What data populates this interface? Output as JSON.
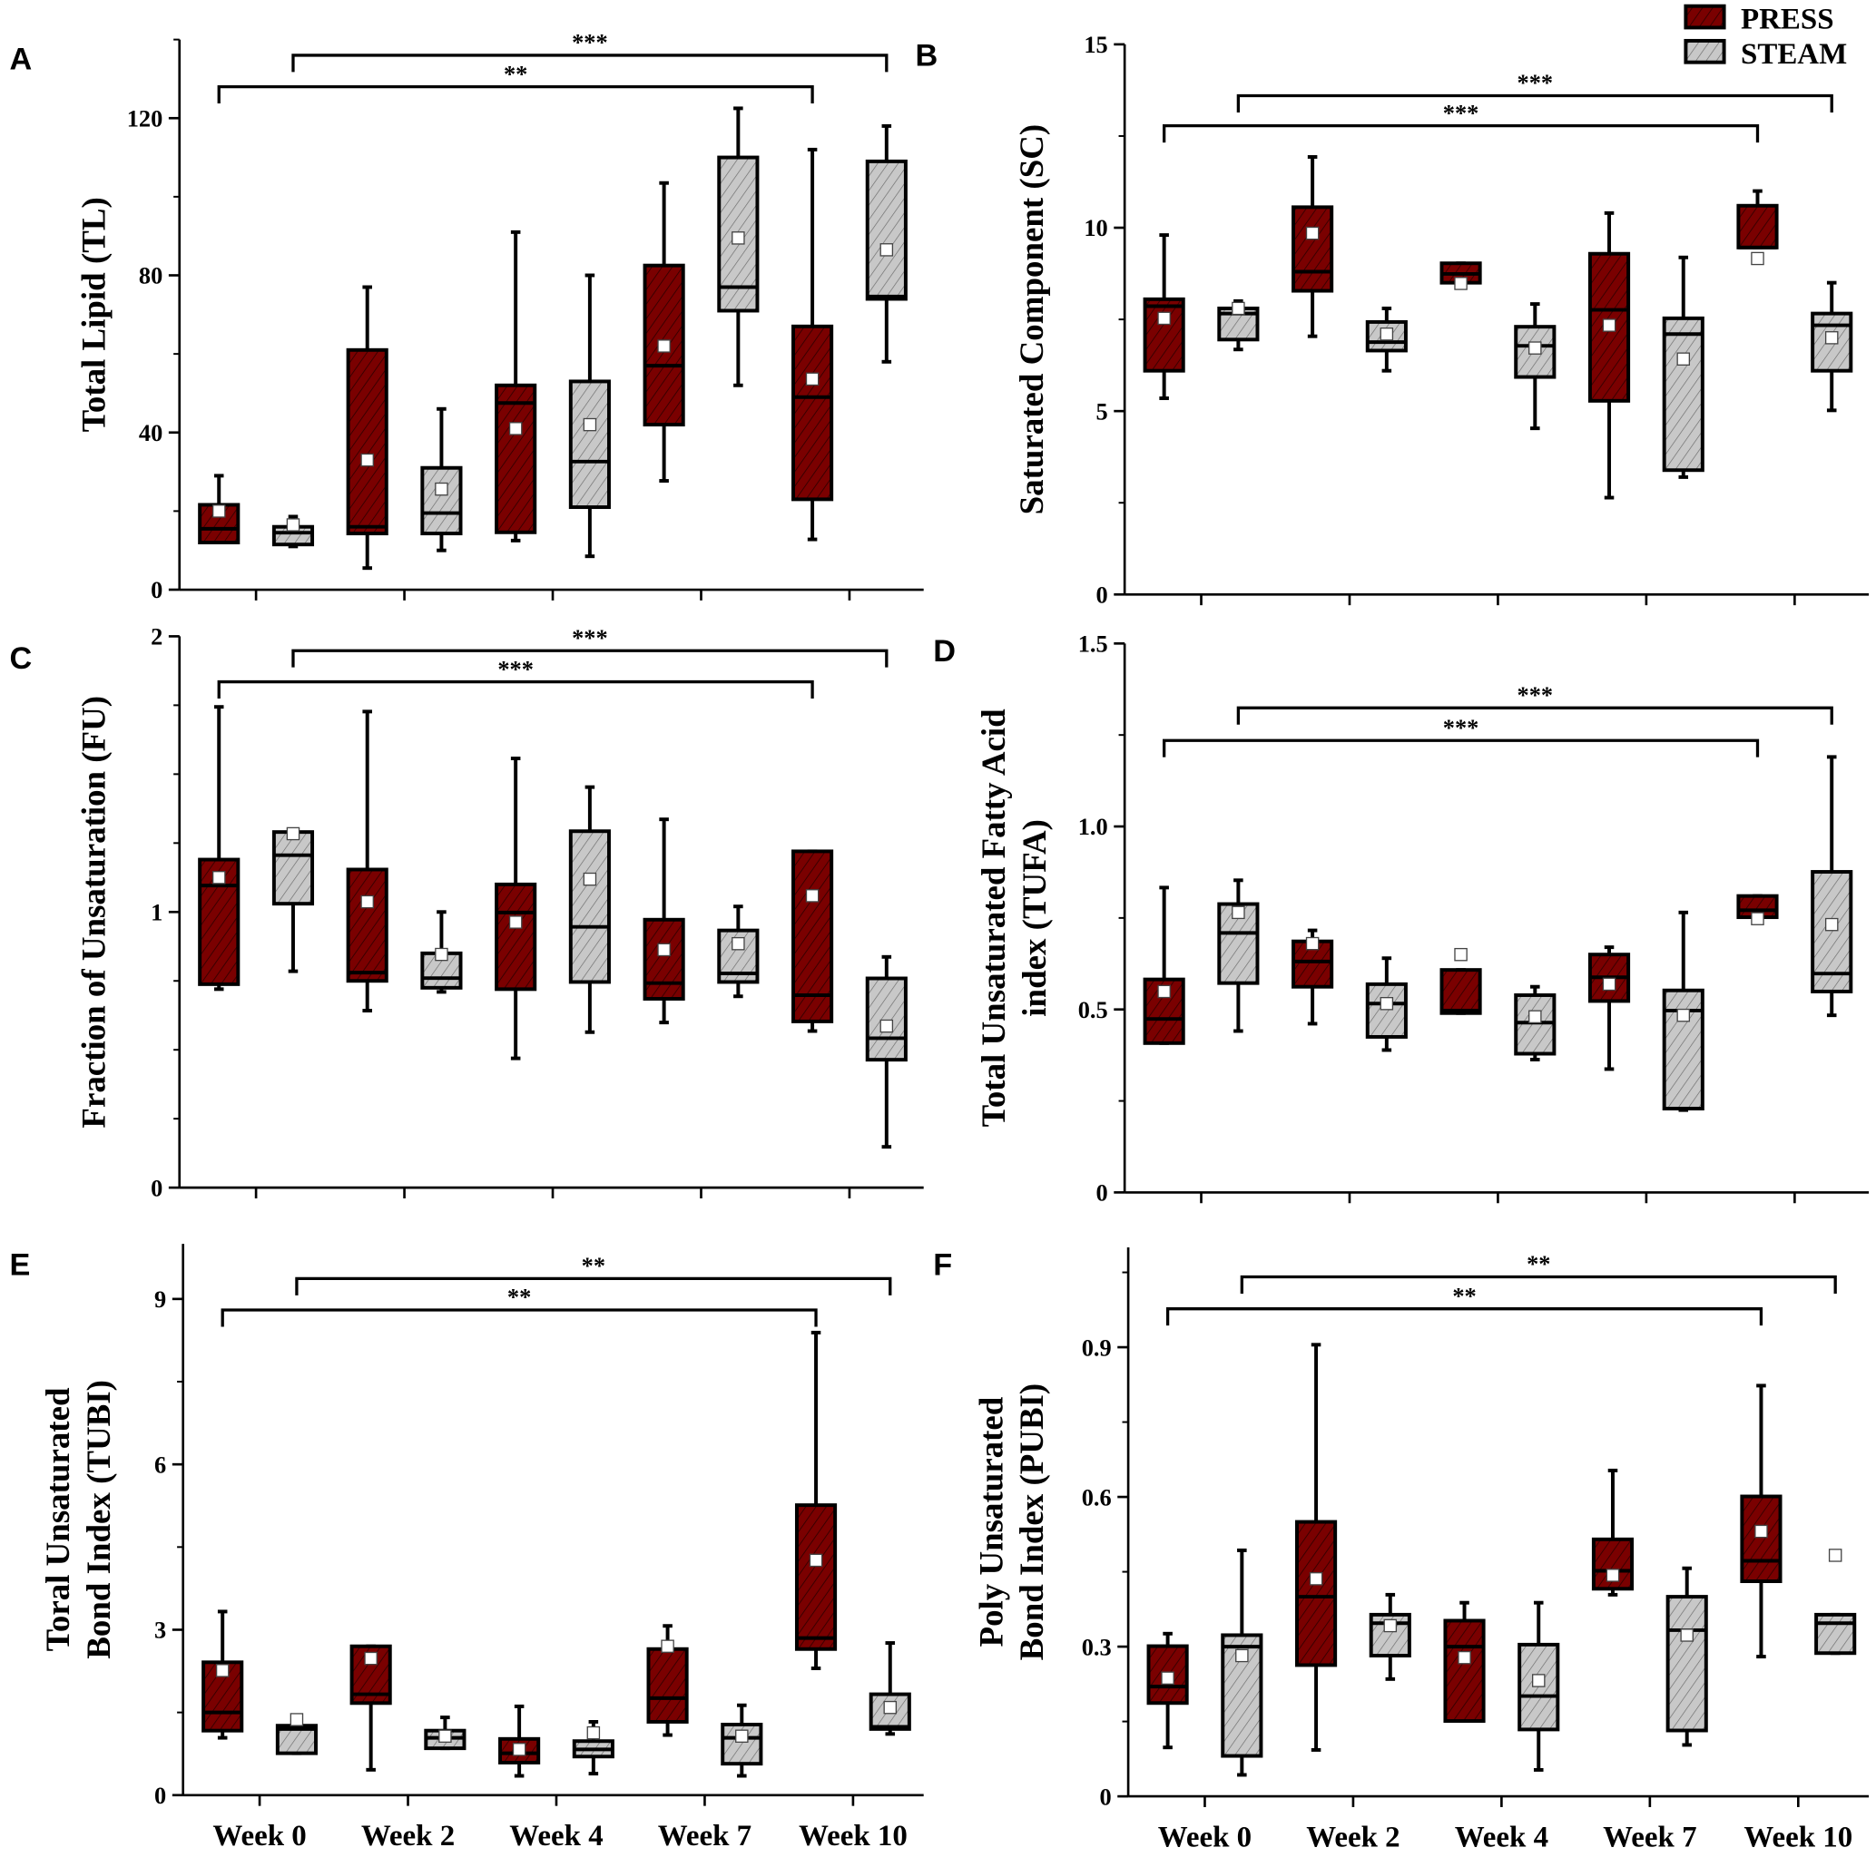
{
  "legend": {
    "press": "PRESS",
    "steam": "STEAM"
  },
  "colors": {
    "press": "#7a0000",
    "steam": "#c8c8c8",
    "hatch": "#000000",
    "mean_marker": "#ffffff"
  },
  "chart_data": [
    {
      "type": "box",
      "panel": "A",
      "ylabel": [
        "Total Lipid (TL)"
      ],
      "ylim": [
        0,
        140
      ],
      "yticks": [
        0,
        40,
        80,
        120
      ],
      "minor_step": 20,
      "categories": [
        "Week 0",
        "Week 2",
        "Week 4",
        "Week 7",
        "Week 10"
      ],
      "show_xticklabels": false,
      "series": [
        {
          "name": "PRESS",
          "boxes": [
            {
              "min": 12,
              "q1": 12,
              "median": 15.5,
              "q3": 21.6,
              "max": 29,
              "mean": 20
            },
            {
              "min": 5.5,
              "q1": 14.3,
              "median": 16,
              "q3": 61,
              "max": 77,
              "mean": 33
            },
            {
              "min": 12.5,
              "q1": 14.6,
              "median": 47.5,
              "q3": 52,
              "max": 91,
              "mean": 41
            },
            {
              "min": 27.7,
              "q1": 42,
              "median": 57,
              "q3": 82.5,
              "max": 103.5,
              "mean": 62
            },
            {
              "min": 12.8,
              "q1": 23,
              "median": 49,
              "q3": 67,
              "max": 112,
              "mean": 53.6
            }
          ]
        },
        {
          "name": "STEAM",
          "boxes": [
            {
              "min": 11,
              "q1": 11.5,
              "median": 14.5,
              "q3": 16,
              "max": 18.6,
              "mean": 16.5
            },
            {
              "min": 10,
              "q1": 14.3,
              "median": 19.5,
              "q3": 31,
              "max": 46,
              "mean": 25.6
            },
            {
              "min": 8.5,
              "q1": 21,
              "median": 32.6,
              "q3": 53,
              "max": 80,
              "mean": 42
            },
            {
              "min": 52,
              "q1": 71,
              "median": 77,
              "q3": 110,
              "max": 122.5,
              "mean": 89.5
            },
            {
              "min": 58,
              "q1": 74,
              "median": 74.6,
              "q3": 109,
              "max": 118,
              "mean": 86.5
            }
          ]
        }
      ],
      "brackets": [
        {
          "from": [
            "PRESS",
            "Week 0"
          ],
          "to": [
            "PRESS",
            "Week 10"
          ],
          "y": 128,
          "label": "**"
        },
        {
          "from": [
            "STEAM",
            "Week 0"
          ],
          "to": [
            "STEAM",
            "Week 10"
          ],
          "y": 136,
          "label": "***"
        }
      ]
    },
    {
      "type": "box",
      "panel": "B",
      "ylabel": [
        "Saturated Component (SC)"
      ],
      "ylim": [
        0,
        15
      ],
      "yticks": [
        0,
        5,
        10,
        15
      ],
      "minor_step": 2.5,
      "categories": [
        "Week 0",
        "Week 2",
        "Week 4",
        "Week 7",
        "Week 10"
      ],
      "show_xticklabels": false,
      "series": [
        {
          "name": "PRESS",
          "boxes": [
            {
              "min": 5.35,
              "q1": 6.1,
              "median": 7.86,
              "q3": 8.05,
              "max": 9.8,
              "mean": 7.53
            },
            {
              "min": 7.04,
              "q1": 8.28,
              "median": 8.8,
              "q3": 10.56,
              "max": 11.93,
              "mean": 9.85
            },
            {
              "min": 8.5,
              "q1": 8.5,
              "median": 8.74,
              "q3": 9.03,
              "max": 9.03,
              "mean": 8.48
            },
            {
              "min": 2.64,
              "q1": 5.28,
              "median": 7.76,
              "q3": 9.29,
              "max": 10.4,
              "mean": 7.34
            },
            {
              "min": 9.46,
              "q1": 9.46,
              "median": 9.46,
              "q3": 10.6,
              "max": 11.0,
              "mean": 9.16
            }
          ]
        },
        {
          "name": "STEAM",
          "boxes": [
            {
              "min": 6.68,
              "q1": 6.95,
              "median": 7.66,
              "q3": 7.8,
              "max": 8.0,
              "mean": 7.8
            },
            {
              "min": 6.1,
              "q1": 6.65,
              "median": 6.88,
              "q3": 7.43,
              "max": 7.8,
              "mean": 7.1
            },
            {
              "min": 4.53,
              "q1": 5.93,
              "median": 6.78,
              "q3": 7.3,
              "max": 7.92,
              "mean": 6.72
            },
            {
              "min": 3.2,
              "q1": 3.39,
              "median": 7.1,
              "q3": 7.53,
              "max": 9.19,
              "mean": 6.42
            },
            {
              "min": 5.02,
              "q1": 6.1,
              "median": 7.34,
              "q3": 7.66,
              "max": 8.5,
              "mean": 7.0
            }
          ]
        }
      ],
      "brackets": [
        {
          "from": [
            "PRESS",
            "Week 0"
          ],
          "to": [
            "PRESS",
            "Week 10"
          ],
          "y": 12.78,
          "label": "***"
        },
        {
          "from": [
            "STEAM",
            "Week 0"
          ],
          "to": [
            "STEAM",
            "Week 10"
          ],
          "y": 13.6,
          "label": "***"
        }
      ]
    },
    {
      "type": "box",
      "panel": "C",
      "ylabel": [
        "Fraction of Unsaturation (FU)"
      ],
      "ylim": [
        0,
        2
      ],
      "yticks": [
        0,
        1,
        2
      ],
      "minor_step": 0.25,
      "categories": [
        "Week 0",
        "Week 2",
        "Week 4",
        "Week 7",
        "Week 10"
      ],
      "show_xticklabels": false,
      "series": [
        {
          "name": "PRESS",
          "boxes": [
            {
              "min": 0.72,
              "q1": 0.738,
              "median": 1.096,
              "q3": 1.19,
              "max": 1.744,
              "mean": 1.125
            },
            {
              "min": 0.642,
              "q1": 0.75,
              "median": 0.78,
              "q3": 1.154,
              "max": 1.727,
              "mean": 1.037
            },
            {
              "min": 0.469,
              "q1": 0.72,
              "median": 0.998,
              "q3": 1.1,
              "max": 1.557,
              "mean": 0.963
            },
            {
              "min": 0.599,
              "q1": 0.685,
              "median": 0.742,
              "q3": 0.972,
              "max": 1.336,
              "mean": 0.863
            },
            {
              "min": 0.568,
              "q1": 0.603,
              "median": 0.698,
              "q3": 1.22,
              "max": 1.22,
              "mean": 1.059
            }
          ]
        },
        {
          "name": "STEAM",
          "boxes": [
            {
              "min": 0.785,
              "q1": 1.03,
              "median": 1.206,
              "q3": 1.29,
              "max": 1.29,
              "mean": 1.284
            },
            {
              "min": 0.71,
              "q1": 0.725,
              "median": 0.76,
              "q3": 0.85,
              "max": 1.0,
              "mean": 0.846
            },
            {
              "min": 0.564,
              "q1": 0.746,
              "median": 0.946,
              "q3": 1.293,
              "max": 1.453,
              "mean": 1.119
            },
            {
              "min": 0.694,
              "q1": 0.746,
              "median": 0.777,
              "q3": 0.933,
              "max": 1.02,
              "mean": 0.885
            },
            {
              "min": 0.148,
              "q1": 0.464,
              "median": 0.542,
              "q3": 0.759,
              "max": 0.837,
              "mean": 0.586
            }
          ]
        }
      ],
      "brackets": [
        {
          "from": [
            "PRESS",
            "Week 0"
          ],
          "to": [
            "PRESS",
            "Week 10"
          ],
          "y": 1.835,
          "label": "***"
        },
        {
          "from": [
            "STEAM",
            "Week 0"
          ],
          "to": [
            "STEAM",
            "Week 10"
          ],
          "y": 1.948,
          "label": "***"
        }
      ]
    },
    {
      "type": "box",
      "panel": "D",
      "ylabel": [
        "Total Unsaturated Fatty Acid",
        "index (TUFA)"
      ],
      "ylim": [
        0,
        1.5
      ],
      "yticks": [
        0,
        0.5,
        1.0,
        1.5
      ],
      "ytick_labels": [
        "0",
        "0.5",
        "1.0",
        "1.5"
      ],
      "minor_step": 0.25,
      "categories": [
        "Week 0",
        "Week 2",
        "Week 4",
        "Week 7",
        "Week 10"
      ],
      "show_xticklabels": false,
      "series": [
        {
          "name": "PRESS",
          "boxes": [
            {
              "min": 0.408,
              "q1": 0.408,
              "median": 0.474,
              "q3": 0.582,
              "max": 0.833,
              "mean": 0.549
            },
            {
              "min": 0.461,
              "q1": 0.562,
              "median": 0.631,
              "q3": 0.686,
              "max": 0.716,
              "mean": 0.68
            },
            {
              "min": 0.49,
              "q1": 0.49,
              "median": 0.497,
              "q3": 0.608,
              "max": 0.608,
              "mean": 0.65
            },
            {
              "min": 0.337,
              "q1": 0.523,
              "median": 0.588,
              "q3": 0.65,
              "max": 0.67,
              "mean": 0.569
            },
            {
              "min": 0.752,
              "q1": 0.752,
              "median": 0.771,
              "q3": 0.81,
              "max": 0.81,
              "mean": 0.748
            }
          ]
        },
        {
          "name": "STEAM",
          "boxes": [
            {
              "min": 0.441,
              "q1": 0.572,
              "median": 0.709,
              "q3": 0.788,
              "max": 0.853,
              "mean": 0.765
            },
            {
              "min": 0.389,
              "q1": 0.425,
              "median": 0.516,
              "q3": 0.569,
              "max": 0.64,
              "mean": 0.516
            },
            {
              "min": 0.363,
              "q1": 0.379,
              "median": 0.464,
              "q3": 0.539,
              "max": 0.562,
              "mean": 0.48
            },
            {
              "min": 0.225,
              "q1": 0.229,
              "median": 0.497,
              "q3": 0.552,
              "max": 0.765,
              "mean": 0.484
            },
            {
              "min": 0.484,
              "q1": 0.549,
              "median": 0.598,
              "q3": 0.876,
              "max": 1.19,
              "mean": 0.732
            }
          ]
        }
      ],
      "brackets": [
        {
          "from": [
            "PRESS",
            "Week 0"
          ],
          "to": [
            "PRESS",
            "Week 10"
          ],
          "y": 1.235,
          "label": "***"
        },
        {
          "from": [
            "STEAM",
            "Week 0"
          ],
          "to": [
            "STEAM",
            "Week 10"
          ],
          "y": 1.324,
          "label": "***"
        }
      ]
    },
    {
      "type": "box",
      "panel": "E",
      "ylabel": [
        "Toral Unsaturated",
        "Bond Index (TUBI)"
      ],
      "ylim": [
        0,
        10
      ],
      "yticks": [
        0,
        3,
        6,
        9
      ],
      "minor_step": 1.5,
      "categories": [
        "Week 0",
        "Week 2",
        "Week 4",
        "Week 7",
        "Week 10"
      ],
      "show_xticklabels": true,
      "series": [
        {
          "name": "PRESS",
          "boxes": [
            {
              "min": 1.04,
              "q1": 1.17,
              "median": 1.5,
              "q3": 2.41,
              "max": 3.33,
              "mean": 2.26
            },
            {
              "min": 0.46,
              "q1": 1.67,
              "median": 1.83,
              "q3": 2.7,
              "max": 2.7,
              "mean": 2.48
            },
            {
              "min": 0.35,
              "q1": 0.59,
              "median": 0.76,
              "q3": 1.02,
              "max": 1.61,
              "mean": 0.83
            },
            {
              "min": 1.09,
              "q1": 1.33,
              "median": 1.76,
              "q3": 2.65,
              "max": 3.07,
              "mean": 2.7
            },
            {
              "min": 2.3,
              "q1": 2.65,
              "median": 2.85,
              "q3": 5.26,
              "max": 8.39,
              "mean": 4.26
            }
          ]
        },
        {
          "name": "STEAM",
          "boxes": [
            {
              "min": 0.76,
              "q1": 0.76,
              "median": 1.2,
              "q3": 1.26,
              "max": 1.3,
              "mean": 1.37
            },
            {
              "min": 0.85,
              "q1": 0.85,
              "median": 1.04,
              "q3": 1.17,
              "max": 1.41,
              "mean": 1.07
            },
            {
              "min": 0.39,
              "q1": 0.7,
              "median": 0.83,
              "q3": 0.98,
              "max": 1.33,
              "mean": 1.13
            },
            {
              "min": 0.35,
              "q1": 0.57,
              "median": 1.04,
              "q3": 1.28,
              "max": 1.63,
              "mean": 1.07
            },
            {
              "min": 1.11,
              "q1": 1.2,
              "median": 1.24,
              "q3": 1.83,
              "max": 2.76,
              "mean": 1.59
            }
          ]
        }
      ],
      "brackets": [
        {
          "from": [
            "PRESS",
            "Week 0"
          ],
          "to": [
            "PRESS",
            "Week 10"
          ],
          "y": 8.8,
          "label": "**"
        },
        {
          "from": [
            "STEAM",
            "Week 0"
          ],
          "to": [
            "STEAM",
            "Week 10"
          ],
          "y": 9.37,
          "label": "**"
        }
      ]
    },
    {
      "type": "box",
      "panel": "F",
      "ylabel": [
        "Poly Unsaturated",
        "Bond Index (PUBI)"
      ],
      "ylim": [
        0,
        1.1
      ],
      "yticks": [
        0,
        0.3,
        0.6,
        0.9
      ],
      "ytick_labels": [
        "0",
        "0.3",
        "0.6",
        "0.9"
      ],
      "minor_step": 0.15,
      "categories": [
        "Week 0",
        "Week 2",
        "Week 4",
        "Week 7",
        "Week 10"
      ],
      "show_xticklabels": true,
      "series": [
        {
          "name": "PRESS",
          "boxes": [
            {
              "min": 0.098,
              "q1": 0.187,
              "median": 0.22,
              "q3": 0.301,
              "max": 0.326,
              "mean": 0.237
            },
            {
              "min": 0.093,
              "q1": 0.263,
              "median": 0.4,
              "q3": 0.55,
              "max": 0.905,
              "mean": 0.436
            },
            {
              "min": 0.151,
              "q1": 0.151,
              "median": 0.3,
              "q3": 0.352,
              "max": 0.388,
              "mean": 0.278
            },
            {
              "min": 0.404,
              "q1": 0.416,
              "median": 0.452,
              "q3": 0.515,
              "max": 0.653,
              "mean": 0.443
            },
            {
              "min": 0.28,
              "q1": 0.431,
              "median": 0.472,
              "q3": 0.601,
              "max": 0.823,
              "mean": 0.531
            }
          ]
        },
        {
          "name": "STEAM",
          "boxes": [
            {
              "min": 0.043,
              "q1": 0.081,
              "median": 0.3,
              "q3": 0.323,
              "max": 0.493,
              "mean": 0.282
            },
            {
              "min": 0.235,
              "q1": 0.282,
              "median": 0.347,
              "q3": 0.364,
              "max": 0.404,
              "mean": 0.342
            },
            {
              "min": 0.053,
              "q1": 0.134,
              "median": 0.201,
              "q3": 0.304,
              "max": 0.388,
              "mean": 0.232
            },
            {
              "min": 0.103,
              "q1": 0.132,
              "median": 0.333,
              "q3": 0.4,
              "max": 0.457,
              "mean": 0.323
            },
            {
              "min": 0.287,
              "q1": 0.287,
              "median": 0.347,
              "q3": 0.364,
              "max": 0.364,
              "mean": 0.483
            }
          ]
        }
      ],
      "brackets": [
        {
          "from": [
            "PRESS",
            "Week 0"
          ],
          "to": [
            "PRESS",
            "Week 10"
          ],
          "y": 0.977,
          "label": "**"
        },
        {
          "from": [
            "STEAM",
            "Week 0"
          ],
          "to": [
            "STEAM",
            "Week 10"
          ],
          "y": 1.041,
          "label": "**"
        }
      ]
    }
  ]
}
